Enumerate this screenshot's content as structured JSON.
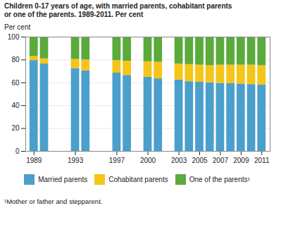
{
  "chart_data": {
    "type": "bar",
    "title": "Children 0-17 years of age, with married parents, cohabitant parents\nor one of the parents. 1989-2011. Per cent",
    "ylabel": "Per cent",
    "footnote": "¹Mother or father and stepparent.",
    "x": [
      1989,
      1990,
      1993,
      1994,
      1997,
      1998,
      2000,
      2001,
      2003,
      2004,
      2005,
      2006,
      2007,
      2008,
      2009,
      2010,
      2011
    ],
    "series": [
      {
        "name": "Married parents",
        "color": "#4b9fcc",
        "values": [
          79.5,
          76.5,
          72.5,
          70.5,
          68.5,
          66.5,
          65.0,
          63.5,
          62.5,
          61.0,
          60.5,
          60.0,
          59.5,
          59.5,
          59.0,
          58.5,
          58.0
        ]
      },
      {
        "name": "Cohabitant parents",
        "color": "#f5c518",
        "values": [
          3.5,
          4.5,
          8.0,
          9.5,
          11.0,
          12.5,
          13.5,
          14.5,
          14.0,
          15.0,
          15.0,
          15.0,
          16.0,
          16.0,
          16.5,
          17.0,
          17.0
        ]
      },
      {
        "name": "One of the parents¹",
        "color": "#5aaa3c",
        "values": [
          17.0,
          19.0,
          19.5,
          20.0,
          20.5,
          21.0,
          21.5,
          22.0,
          23.5,
          24.0,
          24.5,
          25.0,
          24.5,
          24.5,
          24.5,
          24.5,
          25.0
        ]
      }
    ],
    "xlim": [
      1988.2,
      2011.8
    ],
    "xticks": [
      1989,
      1993,
      1997,
      2000,
      2003,
      2005,
      2007,
      2009,
      2011
    ],
    "ylim": [
      0,
      100
    ],
    "yticks": [
      0,
      20,
      40,
      60,
      80,
      100
    ],
    "grid": true,
    "stacked": true,
    "legend": "bottom"
  }
}
